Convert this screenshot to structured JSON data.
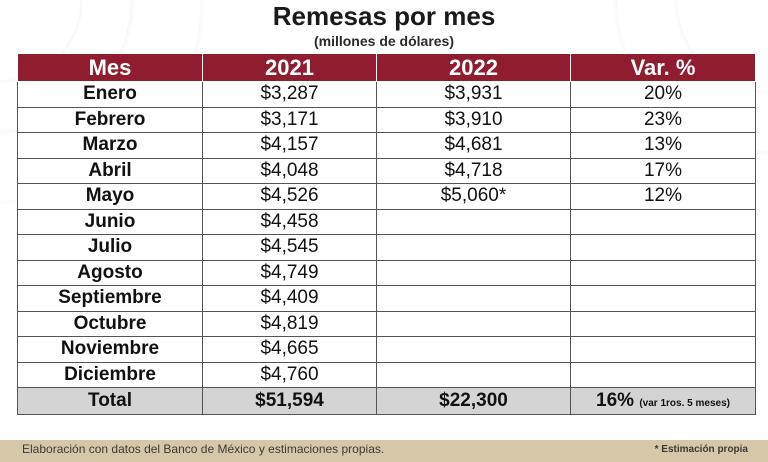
{
  "title": "Remesas por mes",
  "subtitle": "(millones de dólares)",
  "colors": {
    "header_bg": "#8f1c2f",
    "header_text": "#ffffff",
    "total_bg": "#d4d4d4",
    "footer_bg": "#d6c7a8"
  },
  "chart_data": {
    "type": "table",
    "title": "Remesas por mes",
    "subtitle": "(millones de dólares)",
    "columns": [
      "Mes",
      "2021",
      "2022",
      "Var. %"
    ],
    "rows": [
      [
        "Enero",
        "$3,287",
        "$3,931",
        "20%"
      ],
      [
        "Febrero",
        "$3,171",
        "$3,910",
        "23%"
      ],
      [
        "Marzo",
        "$4,157",
        "$4,681",
        "13%"
      ],
      [
        "Abril",
        "$4,048",
        "$4,718",
        "17%"
      ],
      [
        "Mayo",
        "$4,526",
        "$5,060*",
        "12%"
      ],
      [
        "Junio",
        "$4,458",
        "",
        ""
      ],
      [
        "Julio",
        "$4,545",
        "",
        ""
      ],
      [
        "Agosto",
        "$4,749",
        "",
        ""
      ],
      [
        "Septiembre",
        "$4,409",
        "",
        ""
      ],
      [
        "Octubre",
        "$4,819",
        "",
        ""
      ],
      [
        "Noviembre",
        "$4,665",
        "",
        ""
      ],
      [
        "Diciembre",
        "$4,760",
        "",
        ""
      ]
    ],
    "total": {
      "label": "Total",
      "v2021": "$51,594",
      "v2022": "$22,300",
      "var": "16%",
      "var_note": "(var 1ros. 5 meses)"
    }
  },
  "footer": {
    "source": "Elaboración con datos del Banco de México y estimaciones propias.",
    "note": "* Estimación propia"
  }
}
